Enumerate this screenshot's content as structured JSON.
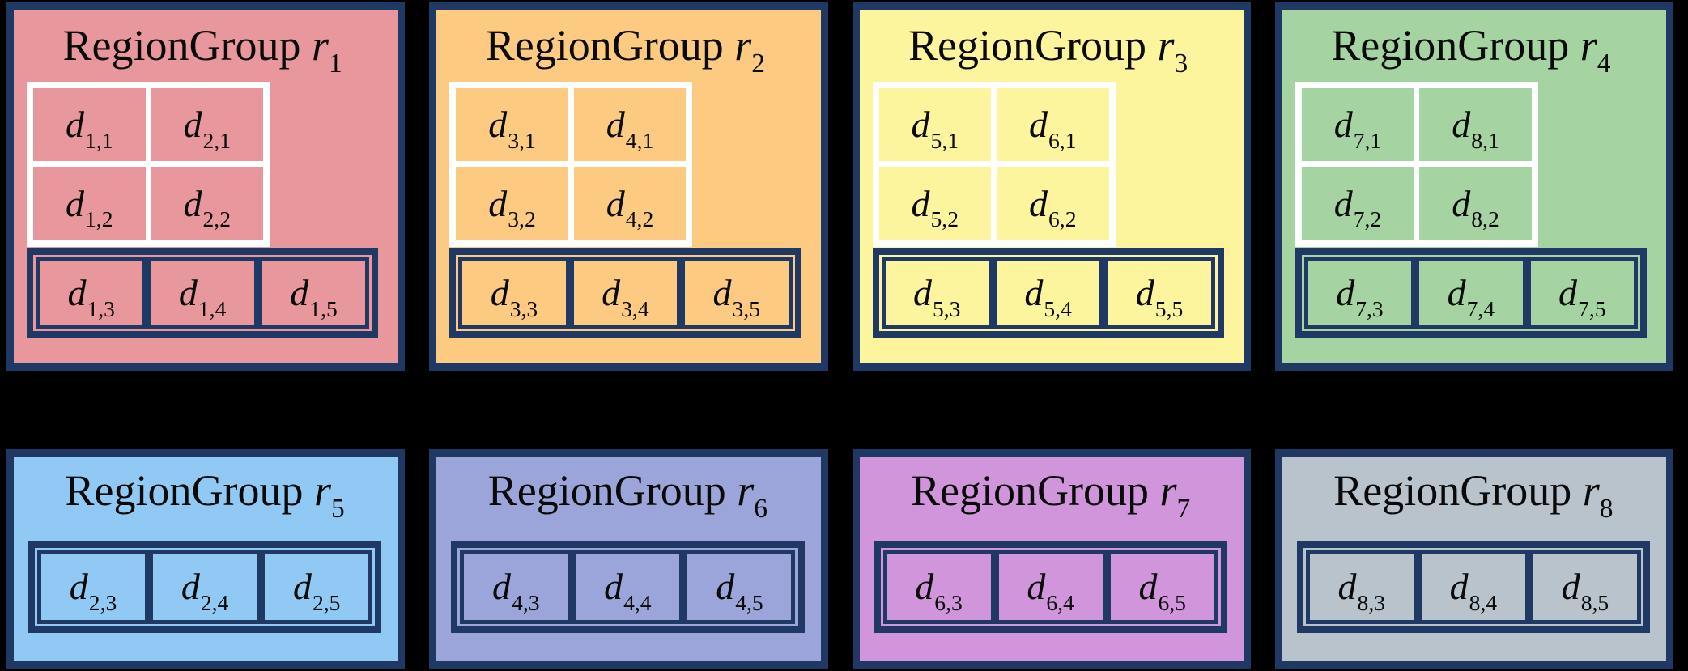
{
  "page": {
    "background": "#000000",
    "border_color": "#1f3864",
    "grid_line_color": "#ffffff",
    "text_color": "#0a0a0a"
  },
  "region_groups": [
    {
      "name": "RegionGroup",
      "symbol": "r",
      "index": "1",
      "color": "#e8989d",
      "position": "top",
      "grid_cells": [
        {
          "base": "d",
          "sub": "1,1"
        },
        {
          "base": "d",
          "sub": "2,1"
        },
        {
          "base": "d",
          "sub": "1,2"
        },
        {
          "base": "d",
          "sub": "2,2"
        }
      ],
      "row_cells": [
        {
          "base": "d",
          "sub": "1,3"
        },
        {
          "base": "d",
          "sub": "1,4"
        },
        {
          "base": "d",
          "sub": "1,5"
        }
      ]
    },
    {
      "name": "RegionGroup",
      "symbol": "r",
      "index": "2",
      "color": "#fcca80",
      "position": "top",
      "grid_cells": [
        {
          "base": "d",
          "sub": "3,1"
        },
        {
          "base": "d",
          "sub": "4,1"
        },
        {
          "base": "d",
          "sub": "3,2"
        },
        {
          "base": "d",
          "sub": "4,2"
        }
      ],
      "row_cells": [
        {
          "base": "d",
          "sub": "3,3"
        },
        {
          "base": "d",
          "sub": "3,4"
        },
        {
          "base": "d",
          "sub": "3,5"
        }
      ]
    },
    {
      "name": "RegionGroup",
      "symbol": "r",
      "index": "3",
      "color": "#fdf49e",
      "position": "top",
      "grid_cells": [
        {
          "base": "d",
          "sub": "5,1"
        },
        {
          "base": "d",
          "sub": "6,1"
        },
        {
          "base": "d",
          "sub": "5,2"
        },
        {
          "base": "d",
          "sub": "6,2"
        }
      ],
      "row_cells": [
        {
          "base": "d",
          "sub": "5,3"
        },
        {
          "base": "d",
          "sub": "5,4"
        },
        {
          "base": "d",
          "sub": "5,5"
        }
      ]
    },
    {
      "name": "RegionGroup",
      "symbol": "r",
      "index": "4",
      "color": "#a5d4a2",
      "position": "top",
      "grid_cells": [
        {
          "base": "d",
          "sub": "7,1"
        },
        {
          "base": "d",
          "sub": "8,1"
        },
        {
          "base": "d",
          "sub": "7,2"
        },
        {
          "base": "d",
          "sub": "8,2"
        }
      ],
      "row_cells": [
        {
          "base": "d",
          "sub": "7,3"
        },
        {
          "base": "d",
          "sub": "7,4"
        },
        {
          "base": "d",
          "sub": "7,5"
        }
      ]
    },
    {
      "name": "RegionGroup",
      "symbol": "r",
      "index": "5",
      "color": "#90c9f4",
      "position": "bottom",
      "grid_cells": null,
      "row_cells": [
        {
          "base": "d",
          "sub": "2,3"
        },
        {
          "base": "d",
          "sub": "2,4"
        },
        {
          "base": "d",
          "sub": "2,5"
        }
      ]
    },
    {
      "name": "RegionGroup",
      "symbol": "r",
      "index": "6",
      "color": "#9ca5d9",
      "position": "bottom",
      "grid_cells": null,
      "row_cells": [
        {
          "base": "d",
          "sub": "4,3"
        },
        {
          "base": "d",
          "sub": "4,4"
        },
        {
          "base": "d",
          "sub": "4,5"
        }
      ]
    },
    {
      "name": "RegionGroup",
      "symbol": "r",
      "index": "7",
      "color": "#d095da",
      "position": "bottom",
      "grid_cells": null,
      "row_cells": [
        {
          "base": "d",
          "sub": "6,3"
        },
        {
          "base": "d",
          "sub": "6,4"
        },
        {
          "base": "d",
          "sub": "6,5"
        }
      ]
    },
    {
      "name": "RegionGroup",
      "symbol": "r",
      "index": "8",
      "color": "#b8c3cb",
      "position": "bottom",
      "grid_cells": null,
      "row_cells": [
        {
          "base": "d",
          "sub": "8,3"
        },
        {
          "base": "d",
          "sub": "8,4"
        },
        {
          "base": "d",
          "sub": "8,5"
        }
      ]
    }
  ]
}
